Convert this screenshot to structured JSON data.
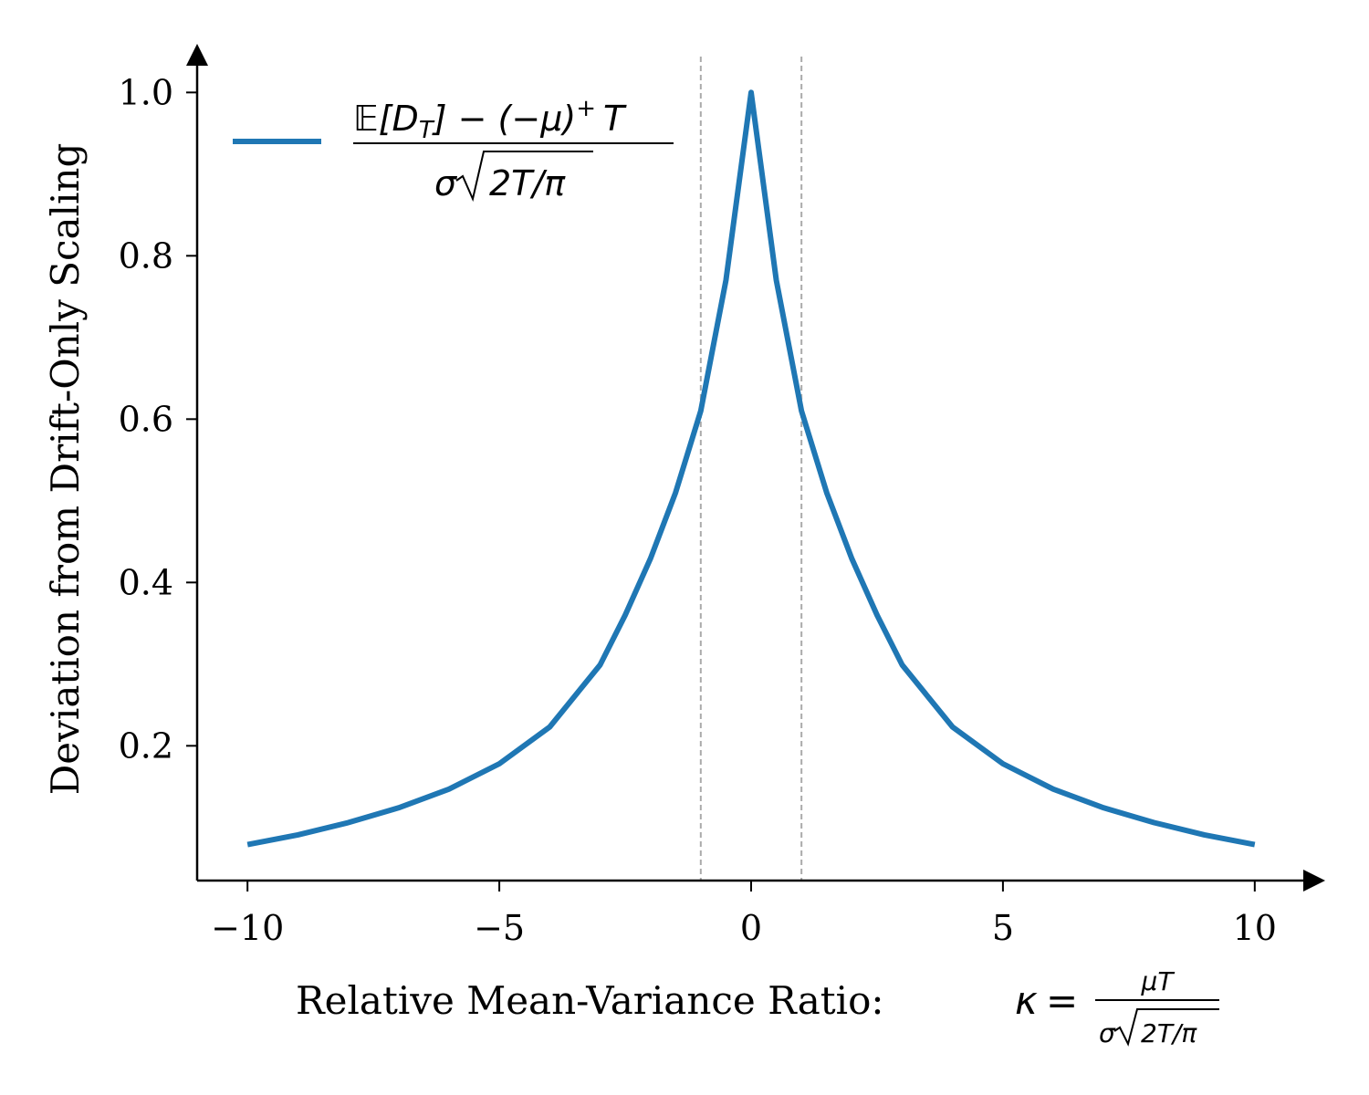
{
  "chart_data": {
    "type": "line",
    "title": "",
    "xlabel": "Relative Mean-Variance Ratio: ",
    "xlabel_math": {
      "lhs": "κ",
      "eq": "=",
      "numerator": "μT",
      "denominator_sigma": "σ",
      "denominator_radicand": "2T/π"
    },
    "ylabel": "Deviation from Drift-Only Scaling",
    "xlim": [
      -11,
      11
    ],
    "ylim": [
      0.035,
      1.035
    ],
    "x_ticks": [
      -10,
      -5,
      0,
      5,
      10
    ],
    "x_tick_labels": [
      "−10",
      "−5",
      "0",
      "5",
      "10"
    ],
    "y_ticks": [
      0.2,
      0.4,
      0.6,
      0.8,
      1.0
    ],
    "y_tick_labels": [
      "0.2",
      "0.4",
      "0.6",
      "0.8",
      "1.0"
    ],
    "grid": false,
    "legend_position": "top-left",
    "legend": {
      "numerator_parts": [
        "𝔼[",
        "D",
        "T",
        "] − (−",
        "μ",
        ")",
        "+",
        "T"
      ],
      "denominator_sigma": "σ",
      "denominator_radicand": "2T/π"
    },
    "reference_lines_x": [
      -1,
      1
    ],
    "series": [
      {
        "name": "(E[D_T] − (−μ)^+ T) / (σ√(2T/π))",
        "color": "#1f77b4",
        "x": [
          -10,
          -9,
          -8,
          -7,
          -6,
          -5,
          -4,
          -3,
          -2.5,
          -2,
          -1.5,
          -1,
          -0.5,
          0,
          0.5,
          1,
          1.5,
          2,
          2.5,
          3,
          4,
          5,
          6,
          7,
          8,
          9,
          10
        ],
        "y": [
          0.079,
          0.091,
          0.106,
          0.124,
          0.147,
          0.178,
          0.223,
          0.299,
          0.36,
          0.429,
          0.51,
          0.61,
          0.77,
          1.0,
          0.77,
          0.61,
          0.51,
          0.429,
          0.36,
          0.299,
          0.223,
          0.178,
          0.147,
          0.124,
          0.106,
          0.091,
          0.079
        ]
      }
    ],
    "colors": {
      "series": "#1f77b4",
      "reference_line": "#aaaaaa",
      "axis": "#000000"
    }
  }
}
